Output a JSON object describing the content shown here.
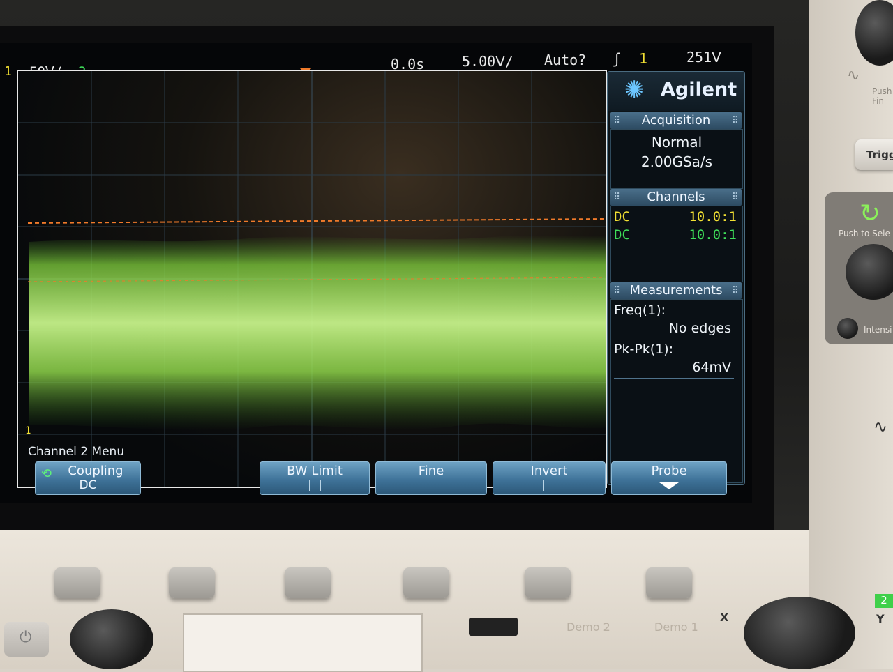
{
  "top_status": {
    "ch1_num": "1",
    "ch1_scale": "50Ⅴ/",
    "ch2_num": "2",
    "time_delay": "0.0s",
    "time_scale": "5.00Ⅴ/",
    "trigger_mode": "Auto?",
    "trigger_icon": "ʃ",
    "trigger_source": "1",
    "trigger_level": "251Ⅴ"
  },
  "brand": {
    "name": "Agilent"
  },
  "acquisition": {
    "title": "Acquisition",
    "mode": "Normal",
    "rate": "2.00GSa/s"
  },
  "channels": {
    "title": "Channels",
    "rows": [
      {
        "coupling": "DC",
        "probe": "10.0:1",
        "color": "#f2e033"
      },
      {
        "coupling": "DC",
        "probe": "10.0:1",
        "color": "#3fe05a"
      }
    ]
  },
  "measurements": {
    "title": "Measurements",
    "items": [
      {
        "label": "Freq(1):",
        "value": "No edges"
      },
      {
        "label": "Pk-Pk(1):",
        "value": "64mV"
      }
    ]
  },
  "ground_marker": "1",
  "menu": {
    "title": "Channel 2 Menu",
    "softkeys": [
      {
        "label": "Coupling",
        "value": "DC"
      },
      {
        "label": "BW Limit"
      },
      {
        "label": "Fine"
      },
      {
        "label": "Invert"
      },
      {
        "label": "Probe"
      }
    ]
  },
  "panel": {
    "demo2": "Demo 2",
    "demo1": "Demo 1",
    "trigger_button": "Trigg",
    "push_label": "Push to Sele",
    "intensity_label": "Intensi",
    "x_label": "X",
    "y_label": "Y",
    "corner_num": "2",
    "push_fin": "Push\nFin"
  },
  "colors": {
    "ch1": "#f2e033",
    "ch2": "#3fe05a",
    "trigger": "#f07a2a",
    "softkey": "#4a7fa5"
  }
}
